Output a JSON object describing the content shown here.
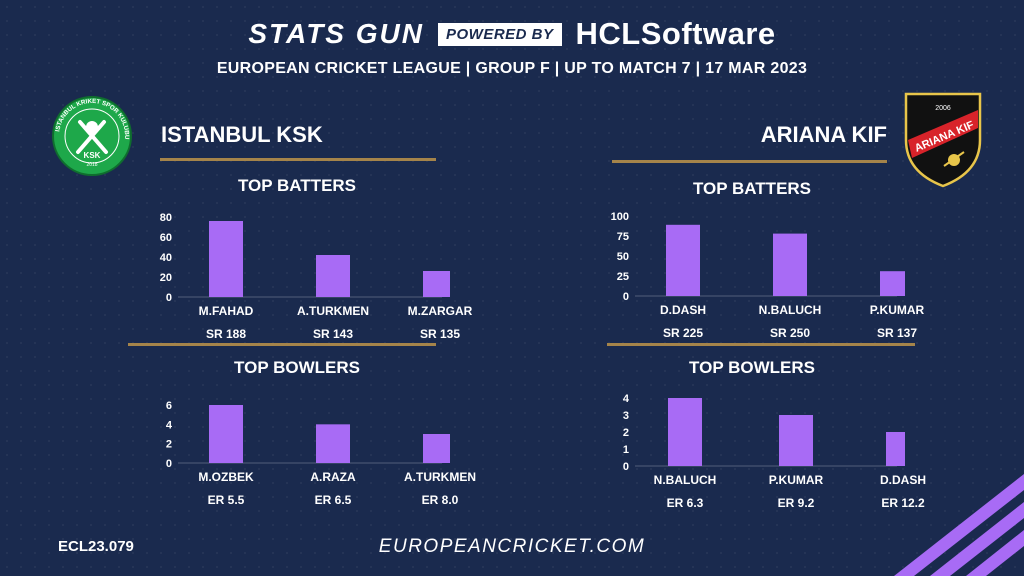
{
  "header": {
    "brand": "STATS GUN",
    "powered_by": "POWERED BY",
    "sponsor": "HCLSoftware",
    "subtitle": "EUROPEAN CRICKET LEAGUE | GROUP F | UP TO MATCH 7 | 17 MAR 2023"
  },
  "teams": {
    "left": {
      "name": "ISTANBUL KSK",
      "logo_text": "ISTANBUL KRIKET SPOR KULUBU",
      "logo_initials": "KSK",
      "logo_year": "2018"
    },
    "right": {
      "name": "ARIANA KIF",
      "logo_text": "ARIANA KIF",
      "logo_year": "2006"
    }
  },
  "colors": {
    "bar": "#a86bf5",
    "gold": "#a5844a",
    "background": "#1a2a4e"
  },
  "chart_data": [
    {
      "id": "left-batters",
      "type": "bar",
      "title": "TOP BATTERS",
      "categories": [
        "M.FAHAD",
        "A.TURKMEN",
        "M.ZARGAR"
      ],
      "values": [
        76,
        42,
        26
      ],
      "sublabels": [
        "SR 188",
        "SR 143",
        "SR 135"
      ],
      "ylim": [
        0,
        80
      ],
      "yticks": [
        0,
        20,
        40,
        60,
        80
      ]
    },
    {
      "id": "left-bowlers",
      "type": "bar",
      "title": "TOP BOWLERS",
      "categories": [
        "M.OZBEK",
        "A.RAZA",
        "A.TURKMEN"
      ],
      "values": [
        6,
        4,
        3
      ],
      "sublabels": [
        "ER 5.5",
        "ER 6.5",
        "ER 8.0"
      ],
      "ylim": [
        0,
        6
      ],
      "yticks": [
        0,
        2,
        4,
        6
      ]
    },
    {
      "id": "right-batters",
      "type": "bar",
      "title": "TOP BATTERS",
      "categories": [
        "D.DASH",
        "N.BALUCH",
        "P.KUMAR"
      ],
      "values": [
        89,
        78,
        31
      ],
      "sublabels": [
        "SR 225",
        "SR 250",
        "SR 137"
      ],
      "ylim": [
        0,
        100
      ],
      "yticks": [
        0,
        25,
        50,
        75,
        100
      ]
    },
    {
      "id": "right-bowlers",
      "type": "bar",
      "title": "TOP BOWLERS",
      "categories": [
        "N.BALUCH",
        "P.KUMAR",
        "D.DASH"
      ],
      "values": [
        4,
        3,
        2
      ],
      "sublabels": [
        "ER  6.3",
        "ER 9.2",
        "ER 12.2"
      ],
      "ylim": [
        0,
        4
      ],
      "yticks": [
        0,
        1,
        2,
        3,
        4
      ]
    }
  ],
  "footer": {
    "code": "ECL23.079",
    "site": "EUROPEANCRICKET.COM"
  }
}
